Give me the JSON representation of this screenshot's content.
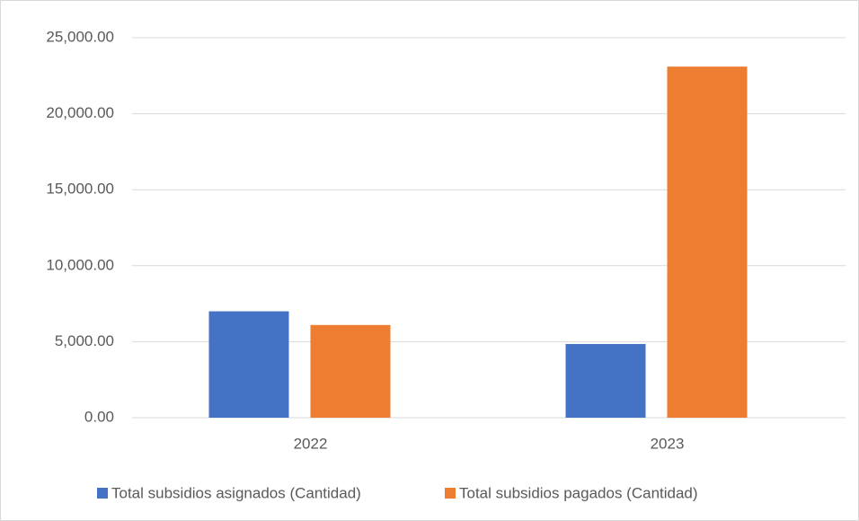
{
  "chart_data": {
    "type": "bar",
    "categories": [
      "2022",
      "2023"
    ],
    "series": [
      {
        "name": "Total subsidios asignados (Cantidad)",
        "color": "#4472c4",
        "values": [
          7000,
          4850
        ]
      },
      {
        "name": "Total subsidios pagados (Cantidad)",
        "color": "#ed7d31",
        "values": [
          6100,
          23100
        ]
      }
    ],
    "ylim": [
      0,
      25000
    ],
    "yticks": [
      {
        "value": 0,
        "label": "0.00"
      },
      {
        "value": 5000,
        "label": "5,000.00"
      },
      {
        "value": 10000,
        "label": "10,000.00"
      },
      {
        "value": 15000,
        "label": "15,000.00"
      },
      {
        "value": 20000,
        "label": "20,000.00"
      },
      {
        "value": 25000,
        "label": "25,000.00"
      }
    ],
    "grid": true,
    "legend": "bottom"
  }
}
